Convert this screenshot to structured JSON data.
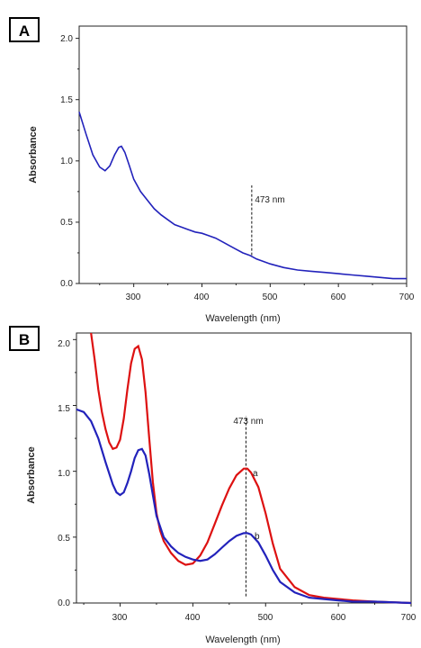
{
  "chart_data": [
    {
      "panel": "A",
      "type": "line",
      "xlabel": "Wavelength (nm)",
      "ylabel": "Absorbance",
      "xlim": [
        220,
        700
      ],
      "ylim": [
        0,
        2.1
      ],
      "x_ticks": [
        "300",
        "400",
        "500",
        "600",
        "700"
      ],
      "y_ticks": [
        "0.0",
        "0.5",
        "1.0",
        "1.5",
        "2.0"
      ],
      "series": [
        {
          "color": "#2222bb",
          "x": [
            220,
            230,
            240,
            250,
            258,
            265,
            272,
            278,
            282,
            287,
            293,
            300,
            310,
            320,
            330,
            340,
            350,
            360,
            370,
            380,
            390,
            400,
            410,
            420,
            430,
            440,
            450,
            460,
            470,
            480,
            490,
            500,
            520,
            540,
            560,
            580,
            600,
            620,
            640,
            660,
            680,
            700
          ],
          "values": [
            1.4,
            1.22,
            1.05,
            0.95,
            0.92,
            0.96,
            1.05,
            1.11,
            1.12,
            1.07,
            0.97,
            0.85,
            0.75,
            0.68,
            0.61,
            0.56,
            0.52,
            0.48,
            0.46,
            0.44,
            0.42,
            0.41,
            0.39,
            0.37,
            0.34,
            0.31,
            0.28,
            0.25,
            0.23,
            0.2,
            0.18,
            0.16,
            0.13,
            0.11,
            0.1,
            0.09,
            0.08,
            0.07,
            0.06,
            0.05,
            0.04,
            0.04
          ]
        }
      ],
      "marker": {
        "x": 473,
        "y_from": 0.23,
        "y_to": 0.8,
        "label": "473 nm"
      }
    },
    {
      "panel": "B",
      "type": "line",
      "xlabel": "Wavelength (nm)",
      "ylabel": "Absorbance",
      "xlim": [
        240,
        700
      ],
      "ylim": [
        0,
        2.05
      ],
      "x_ticks": [
        "300",
        "400",
        "500",
        "600",
        "700"
      ],
      "y_ticks": [
        "0.0",
        "0.5",
        "1.0",
        "1.5",
        "2.0"
      ],
      "series": [
        {
          "name": "a",
          "color": "#dd1111",
          "x": [
            260,
            265,
            270,
            275,
            280,
            285,
            290,
            295,
            300,
            305,
            310,
            315,
            320,
            325,
            330,
            335,
            340,
            345,
            350,
            355,
            360,
            370,
            380,
            390,
            400,
            410,
            420,
            430,
            440,
            450,
            460,
            470,
            475,
            480,
            490,
            500,
            510,
            520,
            540,
            560,
            580,
            600,
            620,
            650,
            700
          ],
          "values": [
            2.05,
            1.85,
            1.62,
            1.45,
            1.32,
            1.22,
            1.17,
            1.18,
            1.24,
            1.4,
            1.62,
            1.82,
            1.93,
            1.95,
            1.85,
            1.6,
            1.25,
            0.92,
            0.68,
            0.55,
            0.47,
            0.38,
            0.32,
            0.29,
            0.3,
            0.36,
            0.46,
            0.6,
            0.74,
            0.87,
            0.97,
            1.02,
            1.02,
            0.99,
            0.88,
            0.68,
            0.45,
            0.26,
            0.12,
            0.06,
            0.04,
            0.03,
            0.02,
            0.01,
            0.0
          ]
        },
        {
          "name": "b",
          "color": "#2222bb",
          "x": [
            240,
            250,
            260,
            270,
            280,
            290,
            295,
            300,
            305,
            310,
            315,
            320,
            325,
            330,
            335,
            340,
            345,
            350,
            360,
            370,
            380,
            390,
            400,
            410,
            420,
            430,
            440,
            450,
            460,
            470,
            475,
            480,
            490,
            500,
            510,
            520,
            540,
            560,
            580,
            600,
            620,
            650,
            700
          ],
          "values": [
            1.47,
            1.45,
            1.38,
            1.25,
            1.07,
            0.9,
            0.84,
            0.82,
            0.84,
            0.91,
            1.0,
            1.1,
            1.16,
            1.17,
            1.12,
            0.98,
            0.82,
            0.66,
            0.5,
            0.43,
            0.38,
            0.35,
            0.33,
            0.32,
            0.33,
            0.37,
            0.42,
            0.47,
            0.51,
            0.53,
            0.53,
            0.52,
            0.46,
            0.36,
            0.25,
            0.16,
            0.08,
            0.04,
            0.03,
            0.02,
            0.01,
            0.01,
            0.0
          ]
        }
      ],
      "marker": {
        "x": 473,
        "y_from": 0.05,
        "y_to": 1.42,
        "label": "473 nm"
      }
    }
  ],
  "panels": {
    "a": {
      "letter": "A",
      "xlabel": "Wavelength (nm)",
      "ylabel": "Absorbance",
      "marker_label": "473 nm"
    },
    "b": {
      "letter": "B",
      "xlabel": "Wavelength (nm)",
      "ylabel": "Absorbance",
      "marker_label": "473 nm",
      "curve_a_label": "a",
      "curve_b_label": "b"
    }
  }
}
